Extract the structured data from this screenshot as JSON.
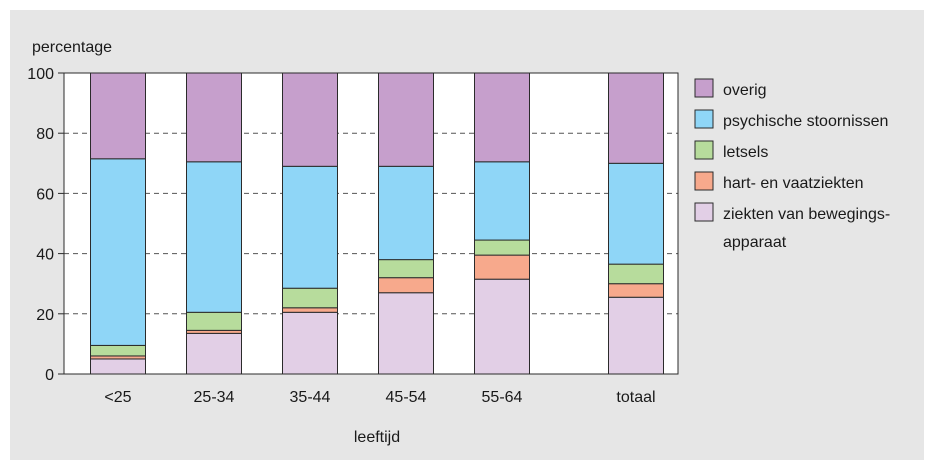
{
  "chart_data": {
    "type": "bar",
    "stacked": true,
    "title": "",
    "ylabel": "percentage",
    "xlabel": "leeftijd",
    "ylim": [
      0,
      100
    ],
    "yticks": [
      0,
      20,
      40,
      60,
      80,
      100
    ],
    "grid": "dashed horizontal",
    "legend_position": "right",
    "categories": [
      "<25",
      "25-34",
      "35-44",
      "45-54",
      "55-64",
      "totaal"
    ],
    "series": [
      {
        "name": "ziekten van bewegings-apparaat",
        "color": "#e2cfe6",
        "values": [
          5,
          13.5,
          20.5,
          27,
          31.5,
          25.5
        ]
      },
      {
        "name": "hart- en vaatziekten",
        "color": "#f7a98c",
        "values": [
          1,
          1,
          1.5,
          5,
          8,
          4.5
        ]
      },
      {
        "name": "letsels",
        "color": "#b7dc9c",
        "values": [
          3.5,
          6,
          6.5,
          6,
          5,
          6.5
        ]
      },
      {
        "name": "psychische stoornissen",
        "color": "#8fd6f7",
        "values": [
          62,
          50,
          40.5,
          31,
          26,
          33.5
        ]
      },
      {
        "name": "overig",
        "color": "#c69fcc",
        "values": [
          28.5,
          29.5,
          31,
          31,
          29.5,
          30
        ]
      }
    ],
    "legend_order": [
      "overig",
      "psychische stoornissen",
      "letsels",
      "hart- en vaatziekten",
      "ziekten van bewegings-apparaat"
    ],
    "legend_labels": {
      "overig": [
        "overig"
      ],
      "psychische stoornissen": [
        "psychische stoornissen"
      ],
      "letsels": [
        "letsels"
      ],
      "hart- en vaatziekten": [
        "hart- en vaatziekten"
      ],
      "ziekten van bewegings-apparaat": [
        "ziekten van bewegings-",
        "apparaat"
      ]
    }
  }
}
